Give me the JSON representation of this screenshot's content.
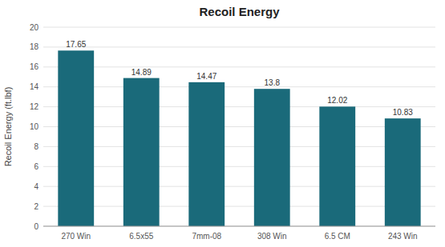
{
  "chart_data": {
    "type": "bar",
    "title": "Recoil Energy",
    "categories": [
      "270 Win",
      "6.5x55",
      "7mm-08",
      "308 Win",
      "6.5 CM",
      "243 Win"
    ],
    "values": [
      17.65,
      14.89,
      14.47,
      13.8,
      12.02,
      10.83
    ],
    "color": "#1a6a7a",
    "ylabel": "Recoil Energy (ft.lbf)",
    "ylim": [
      0,
      20
    ],
    "yticks": [
      0,
      2,
      4,
      6,
      8,
      10,
      12,
      14,
      16,
      18,
      20
    ],
    "grid": true,
    "data_labels": true
  }
}
